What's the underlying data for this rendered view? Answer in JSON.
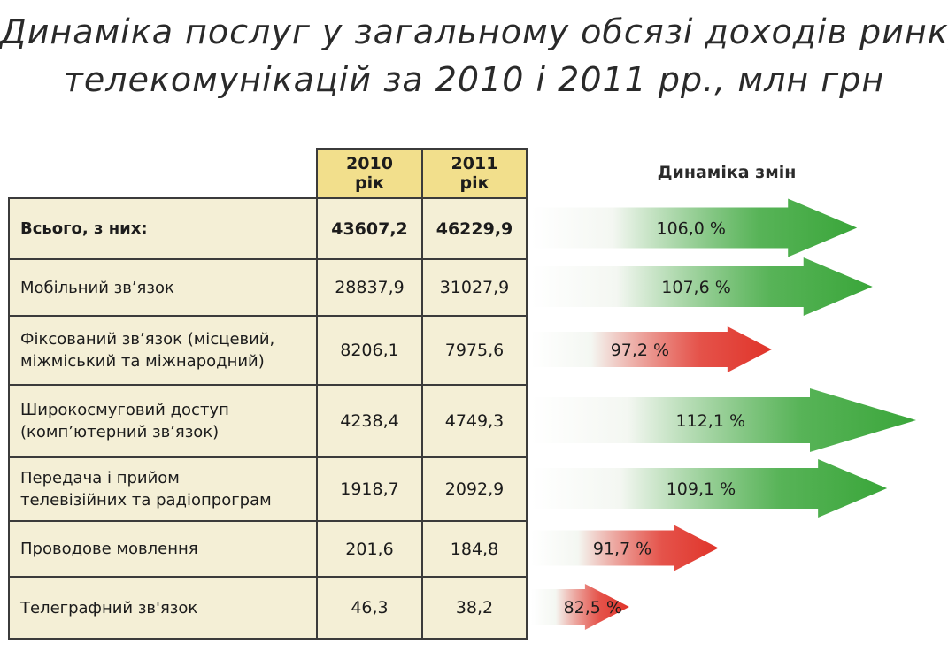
{
  "title": {
    "line1": "Динаміка послуг у загальному обсязі доходів ринку",
    "line2": "телекомунікацій за 2010 і 2011 рр., млн грн"
  },
  "dynamics_header": "Динаміка змін",
  "colors": {
    "growth": "#3aa63a",
    "decline": "#e0342a",
    "header_fill": "#f2df8c",
    "cell_fill": "#f4efd6"
  },
  "chart_data": {
    "type": "table",
    "columns": [
      {
        "year": "2010",
        "unit": "рік"
      },
      {
        "year": "2011",
        "unit": "рік"
      }
    ],
    "rows": [
      {
        "label": "Всього, з них:",
        "v2010": "43607,2",
        "v2011": "46229,9",
        "change": 106.0,
        "change_label": "106,0 %",
        "bold": true
      },
      {
        "label": "Мобільний зв’язок",
        "v2010": "28837,9",
        "v2011": "31027,9",
        "change": 107.6,
        "change_label": "107,6 %"
      },
      {
        "label_lines": [
          "Фіксований зв’язок (місцевий,",
          "міжміський та міжнародний)"
        ],
        "v2010": "8206,1",
        "v2011": "7975,6",
        "change": 97.2,
        "change_label": "97,2 %"
      },
      {
        "label_lines": [
          "Широкосмуговий доступ",
          "(комп’ютерний зв’язок)"
        ],
        "v2010": "4238,4",
        "v2011": "4749,3",
        "change": 112.1,
        "change_label": "112,1 %"
      },
      {
        "label_lines": [
          "Передача і прийом",
          "телевізійних та радіопрограм"
        ],
        "v2010": "1918,7",
        "v2011": "2092,9",
        "change": 109.1,
        "change_label": "109,1 %"
      },
      {
        "label": "Проводове мовлення",
        "v2010": "201,6",
        "v2011": "184,8",
        "change": 91.7,
        "change_label": "91,7 %"
      },
      {
        "label": "Телеграфний зв'язок",
        "v2010": "46,3",
        "v2011": "38,2",
        "change": 82.5,
        "change_label": "82,5 %"
      }
    ]
  }
}
